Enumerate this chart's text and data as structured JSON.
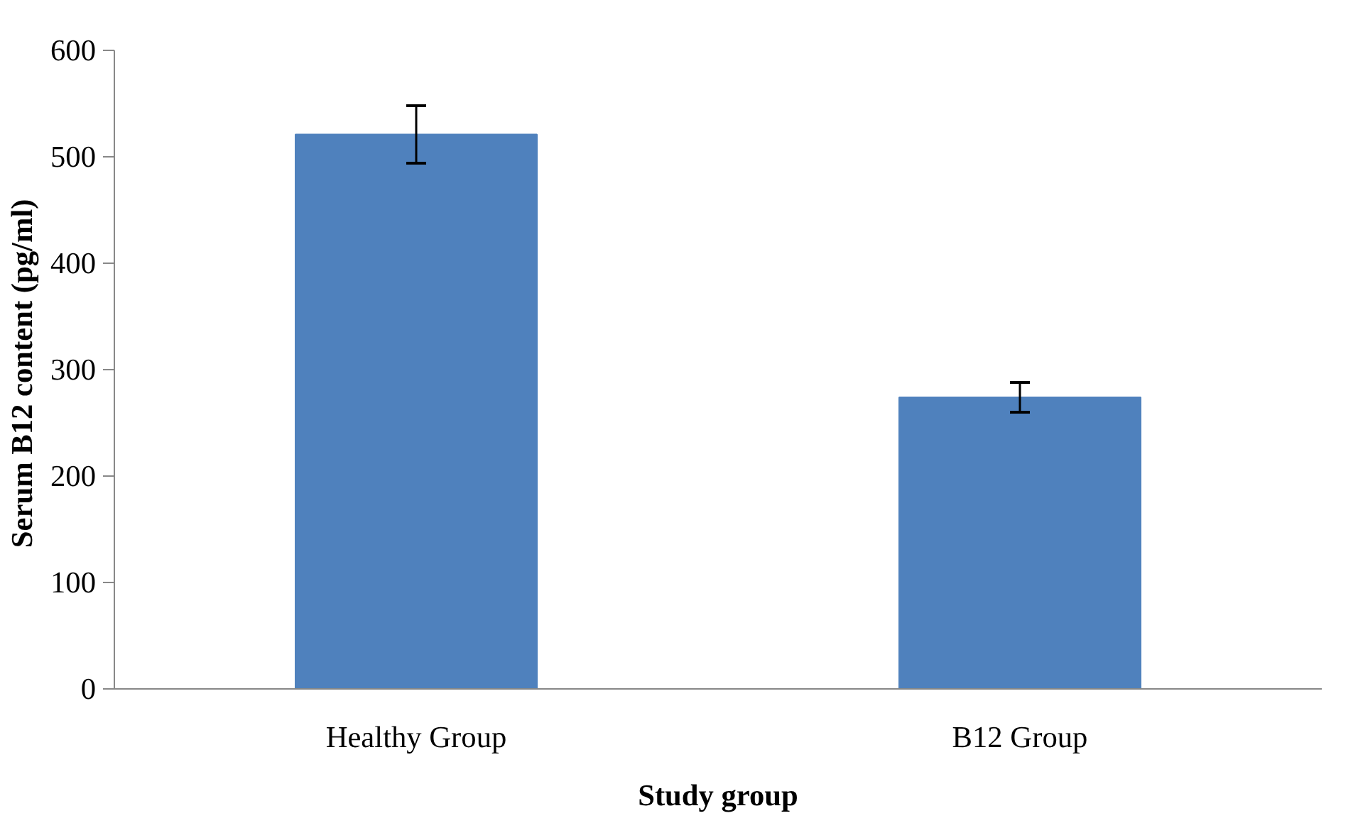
{
  "chart_data": {
    "type": "bar",
    "xlabel": "Study group",
    "ylabel": "Serum B12 content  (pg/ml)",
    "categories": [
      "Healthy Group",
      "B12 Group"
    ],
    "values": [
      521,
      274
    ],
    "errors": [
      27,
      14
    ],
    "color": "#4f81bd",
    "ylim": [
      0,
      600
    ],
    "yticks": [
      0,
      100,
      200,
      300,
      400,
      500,
      600
    ],
    "grid": false
  }
}
